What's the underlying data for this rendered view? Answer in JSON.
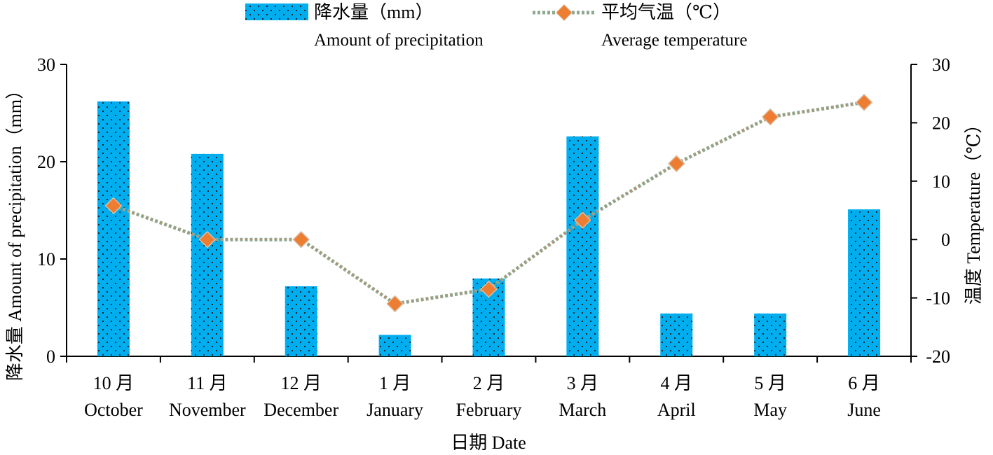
{
  "chart_data": {
    "type": "bar",
    "categories_cn": [
      "10 月",
      "11 月",
      "12 月",
      "1 月",
      "2 月",
      "3 月",
      "4 月",
      "5 月",
      "6 月"
    ],
    "categories_en": [
      "October",
      "November",
      "December",
      "January",
      "February",
      "March",
      "April",
      "May",
      "June"
    ],
    "series": [
      {
        "name_cn": "降水量（mm）",
        "name_en": "Amount of precipitation",
        "type": "bar",
        "axis": "left",
        "color": "#00AEEF",
        "values": [
          26.2,
          20.8,
          7.2,
          2.2,
          8.0,
          22.6,
          4.4,
          4.4,
          15.1
        ]
      },
      {
        "name_cn": "平均气温（℃）",
        "name_en": "Average temperature",
        "type": "line",
        "axis": "right",
        "line_color": "#8FA88F",
        "marker_color": "#ED7D31",
        "values": [
          5.8,
          0.0,
          0.0,
          -11.0,
          -8.5,
          3.3,
          13.0,
          21.0,
          23.5
        ]
      }
    ],
    "ylabel_left": "降水量 Amount of precipitation（mm）",
    "ylabel_right": "温度 Temperature（℃）",
    "xlabel": "日期 Date",
    "ylim_left": [
      0,
      30
    ],
    "ylim_right": [
      -20,
      30
    ],
    "yticks_left": [
      0,
      10,
      20,
      30
    ],
    "yticks_right": [
      -20,
      -10,
      0,
      10,
      20,
      30
    ],
    "grid": false,
    "legend": "top"
  }
}
